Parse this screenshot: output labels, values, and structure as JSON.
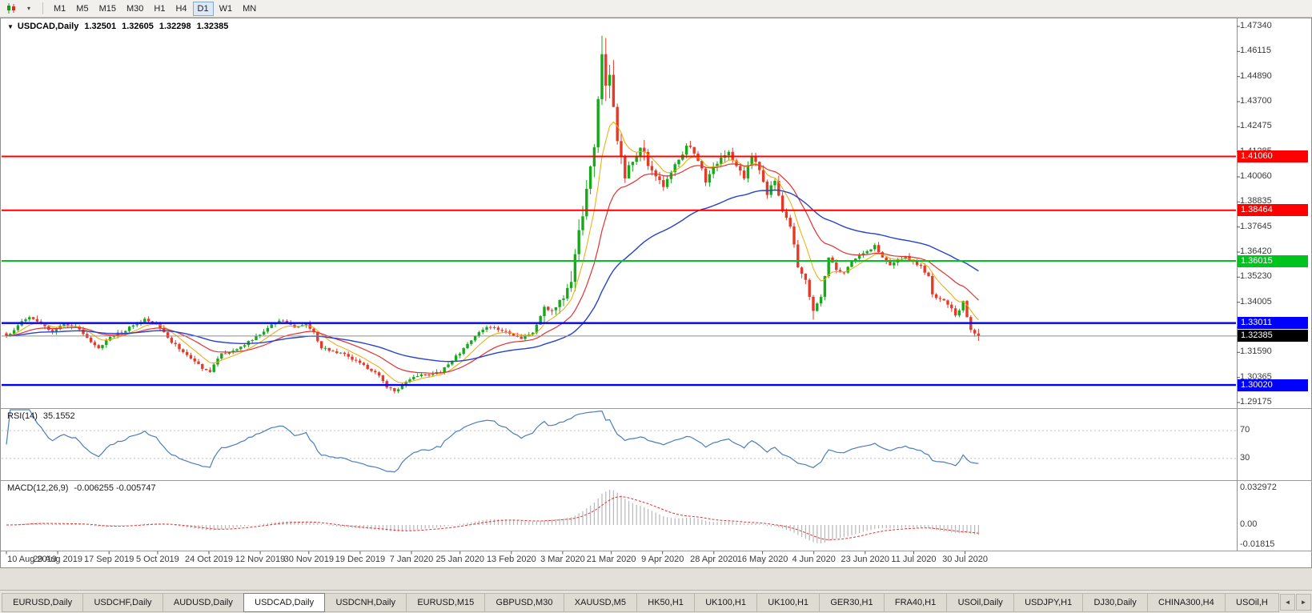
{
  "colors": {
    "up": "#17a81c",
    "down": "#e33a2a",
    "ma_fast": "#efa900",
    "ma_mid": "#e03232",
    "ma_slow": "#2743cc",
    "rsi": "#4a7ebb",
    "rsi_level": "#bdbdbd",
    "macd_hist": "#b8b8b8",
    "macd_signal": "#e03232",
    "level_red": "#fe0000",
    "level_green": "#00c41e",
    "level_blue": "#0000fe",
    "price_line": "#8c8c8c",
    "badge_current": "#000000"
  },
  "toolbar": {
    "timeframes": [
      "M1",
      "M5",
      "M15",
      "M30",
      "H1",
      "H4",
      "D1",
      "W1",
      "MN"
    ],
    "active": "D1",
    "dropdown_caret": "▾"
  },
  "chart_header": {
    "marker": "▼",
    "symbol": "USDCAD,Daily",
    "open": "1.32501",
    "high": "1.32605",
    "low": "1.32298",
    "close": "1.32385"
  },
  "price_scale": {
    "ticks": [
      "1.47340",
      "1.46115",
      "1.44890",
      "1.43700",
      "1.42475",
      "1.41285",
      "1.40060",
      "1.38835",
      "1.37645",
      "1.36420",
      "1.35230",
      "1.34005",
      "1.32780",
      "1.31590",
      "1.30365",
      "1.29175"
    ]
  },
  "badges": [
    {
      "text": "1.41060",
      "price": 1.4106,
      "color_key": "level_red"
    },
    {
      "text": "1.38464",
      "price": 1.38464,
      "color_key": "level_red"
    },
    {
      "text": "1.36015",
      "price": 1.36015,
      "color_key": "level_green"
    },
    {
      "text": "1.33011",
      "price": 1.33011,
      "color_key": "level_blue"
    },
    {
      "text": "1.32385",
      "price": 1.32385,
      "color_key": "badge_current"
    },
    {
      "text": "1.30020",
      "price": 1.3002,
      "color_key": "level_blue"
    }
  ],
  "rsi_panel": {
    "name": "RSI(14)",
    "value": "35.1552",
    "scale": [
      {
        "text": "70",
        "level": 70
      },
      {
        "text": "30",
        "level": 30
      }
    ]
  },
  "macd_panel": {
    "name": "MACD(12,26,9)",
    "values": "-0.006255 -0.005747",
    "scale": [
      {
        "text": "0.032972",
        "value": 0.032972
      },
      {
        "text": "0.00",
        "value": 0
      },
      {
        "text": "-0.01815",
        "value": -0.01815
      }
    ]
  },
  "tabs": {
    "items": [
      "EURUSD,Daily",
      "USDCHF,Daily",
      "AUDUSD,Daily",
      "USDCAD,Daily",
      "USDCNH,Daily",
      "EURUSD,M15",
      "GBPUSD,M30",
      "XAUUSD,M5",
      "HK50,H1",
      "UK100,H1",
      "UK100,H1",
      "GER30,H1",
      "FRA40,H1",
      "USOil,Daily",
      "USDJPY,H1",
      "DJ30,Daily",
      "CHINA300,H4",
      "USOil,H"
    ],
    "active_index": 3,
    "left_arrow": "◄",
    "right_arrow": "►"
  },
  "chart_data": {
    "type": "candlestick",
    "symbol": "USDCAD",
    "timeframe": "Daily",
    "title": "USDCAD,Daily",
    "current_ohlc": {
      "open": 1.32501,
      "high": 1.32605,
      "low": 1.32298,
      "close": 1.32385
    },
    "y_range": [
      1.29175,
      1.4734
    ],
    "bars": 254,
    "seed": 7,
    "x_tick_labels": [
      "10 Aug 2019",
      "29 Aug 2019",
      "17 Sep 2019",
      "5 Oct 2019",
      "24 Oct 2019",
      "12 Nov 2019",
      "30 Nov 2019",
      "19 Dec 2019",
      "7 Jan 2020",
      "25 Jan 2020",
      "13 Feb 2020",
      "3 Mar 2020",
      "21 Mar 2020",
      "9 Apr 2020",
      "28 Apr 2020",
      "16 May 2020",
      "4 Jun 2020",
      "23 Jun 2020",
      "11 Jul 2020",
      "30 Jul 2020"
    ],
    "close_anchors": [
      [
        0,
        1.324
      ],
      [
        3,
        1.329
      ],
      [
        6,
        1.333
      ],
      [
        9,
        1.33
      ],
      [
        12,
        1.3258
      ],
      [
        15,
        1.3298
      ],
      [
        18,
        1.3285
      ],
      [
        21,
        1.323
      ],
      [
        24,
        1.318
      ],
      [
        27,
        1.3235
      ],
      [
        30,
        1.3255
      ],
      [
        33,
        1.329
      ],
      [
        36,
        1.3322
      ],
      [
        39,
        1.33
      ],
      [
        42,
        1.323
      ],
      [
        45,
        1.3175
      ],
      [
        48,
        1.313
      ],
      [
        51,
        1.308
      ],
      [
        53,
        1.3065
      ],
      [
        56,
        1.3155
      ],
      [
        60,
        1.3175
      ],
      [
        63,
        1.3215
      ],
      [
        66,
        1.3245
      ],
      [
        69,
        1.3295
      ],
      [
        72,
        1.3312
      ],
      [
        75,
        1.328
      ],
      [
        78,
        1.33
      ],
      [
        80,
        1.3258
      ],
      [
        82,
        1.318
      ],
      [
        85,
        1.3165
      ],
      [
        88,
        1.3152
      ],
      [
        91,
        1.312
      ],
      [
        94,
        1.308
      ],
      [
        97,
        1.3048
      ],
      [
        99,
        1.299
      ],
      [
        101,
        1.2972
      ],
      [
        104,
        1.3018
      ],
      [
        107,
        1.3045
      ],
      [
        110,
        1.305
      ],
      [
        113,
        1.3062
      ],
      [
        116,
        1.312
      ],
      [
        119,
        1.318
      ],
      [
        122,
        1.324
      ],
      [
        125,
        1.3282
      ],
      [
        128,
        1.3268
      ],
      [
        131,
        1.325
      ],
      [
        134,
        1.3225
      ],
      [
        137,
        1.3255
      ],
      [
        140,
        1.338
      ],
      [
        143,
        1.3378
      ],
      [
        145,
        1.342
      ],
      [
        147,
        1.35
      ],
      [
        149,
        1.375
      ],
      [
        151,
        1.395
      ],
      [
        153,
        1.415
      ],
      [
        155,
        1.46
      ],
      [
        156,
        1.4448
      ],
      [
        157,
        1.45
      ],
      [
        158,
        1.4345
      ],
      [
        159,
        1.418
      ],
      [
        161,
        1.4
      ],
      [
        163,
        1.408
      ],
      [
        165,
        1.4148
      ],
      [
        167,
        1.406
      ],
      [
        169,
        1.401
      ],
      [
        171,
        1.3958
      ],
      [
        173,
        1.403
      ],
      [
        175,
        1.409
      ],
      [
        177,
        1.4158
      ],
      [
        179,
        1.412
      ],
      [
        181,
        1.4048
      ],
      [
        182,
        1.398
      ],
      [
        184,
        1.4058
      ],
      [
        186,
        1.41
      ],
      [
        188,
        1.4128
      ],
      [
        190,
        1.406
      ],
      [
        192,
        1.4
      ],
      [
        194,
        1.4108
      ],
      [
        196,
        1.404
      ],
      [
        198,
        1.392
      ],
      [
        200,
        1.3988
      ],
      [
        202,
        1.384
      ],
      [
        204,
        1.3768
      ],
      [
        206,
        1.357
      ],
      [
        208,
        1.351
      ],
      [
        210,
        1.336
      ],
      [
        212,
        1.3428
      ],
      [
        214,
        1.3618
      ],
      [
        216,
        1.3558
      ],
      [
        218,
        1.3545
      ],
      [
        220,
        1.3598
      ],
      [
        222,
        1.3628
      ],
      [
        224,
        1.3648
      ],
      [
        226,
        1.3678
      ],
      [
        228,
        1.3618
      ],
      [
        230,
        1.358
      ],
      [
        232,
        1.3608
      ],
      [
        234,
        1.3625
      ],
      [
        236,
        1.3598
      ],
      [
        238,
        1.3578
      ],
      [
        240,
        1.3528
      ],
      [
        241,
        1.344
      ],
      [
        243,
        1.3418
      ],
      [
        245,
        1.339
      ],
      [
        247,
        1.3338
      ],
      [
        249,
        1.3408
      ],
      [
        251,
        1.3268
      ],
      [
        253,
        1.32385
      ]
    ],
    "volatility_zones": [
      [
        0,
        139,
        0.0018
      ],
      [
        140,
        146,
        0.004
      ],
      [
        147,
        153,
        0.0085
      ],
      [
        154,
        160,
        0.0105
      ],
      [
        161,
        166,
        0.006
      ],
      [
        167,
        212,
        0.0032
      ],
      [
        213,
        247,
        0.0022
      ],
      [
        248,
        253,
        0.003
      ]
    ],
    "high_overrides": {
      "8": 1.3338,
      "155": 1.4689
    },
    "low_overrides": {
      "101": 1.2962,
      "210": 1.3318
    },
    "moving_averages": [
      {
        "period": 8,
        "color_key": "ma_fast"
      },
      {
        "period": 21,
        "color_key": "ma_mid"
      },
      {
        "period": 55,
        "color_key": "ma_slow"
      }
    ],
    "levels": [
      {
        "price": 1.4106,
        "color_key": "level_red"
      },
      {
        "price": 1.38464,
        "color_key": "level_red"
      },
      {
        "price": 1.36015,
        "color_key": "level_green"
      },
      {
        "price": 1.33011,
        "color_key": "level_blue"
      },
      {
        "price": 1.3002,
        "color_key": "level_blue"
      }
    ],
    "current_price": 1.32385,
    "rsi": {
      "period": 14,
      "current": 35.1552,
      "overbought": 70,
      "oversold": 30
    },
    "macd": {
      "fast": 12,
      "slow": 26,
      "signal": 9,
      "current_macd": -0.006255,
      "current_signal": -0.005747,
      "scale_max": 0.032972,
      "scale_min": -0.01815
    }
  }
}
